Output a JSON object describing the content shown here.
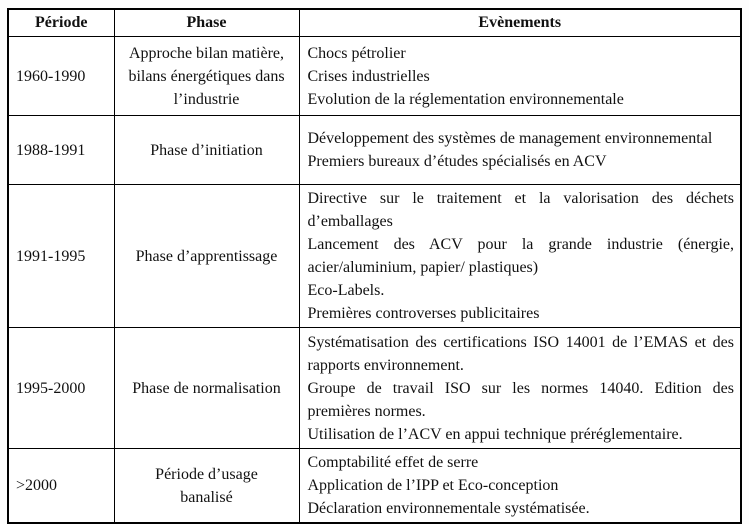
{
  "table": {
    "headers": [
      "Période",
      "Phase",
      "Evènements"
    ],
    "rows": [
      {
        "periode": "1960-1990",
        "phase": "Approche bilan matière, bilans énergétiques dans l’industrie",
        "events": [
          "Chocs pétrolier",
          "Crises industrielles",
          "Evolution de la réglementation environnementale"
        ]
      },
      {
        "periode": "1988-1991",
        "phase": "Phase d’initiation",
        "events": [
          "Développement des systèmes de management environnemental",
          "Premiers bureaux d’études spécialisés en ACV"
        ]
      },
      {
        "periode": "1991-1995",
        "phase": "Phase d’apprentissage",
        "events": [
          "Directive sur le traitement et la valorisation des déchets d’emballages",
          "Lancement des ACV pour la grande industrie (énergie, acier/aluminium, papier/ plastiques)",
          "Eco-Labels.",
          "Premières controverses publicitaires"
        ]
      },
      {
        "periode": "1995-2000",
        "phase": "Phase de normalisation",
        "events": [
          "Systématisation des certifications ISO 14001 de l’EMAS et des rapports environnement.",
          "Groupe de travail ISO sur les normes 14040. Edition des premières normes.",
          "Utilisation de l’ACV en appui technique préréglementaire."
        ]
      },
      {
        "periode": ">2000",
        "phase": "Période d’usage banalisé",
        "events": [
          "Comptabilité effet de serre",
          "Application de l’IPP et Eco-conception",
          "Déclaration environnementale systématisée."
        ]
      }
    ]
  }
}
